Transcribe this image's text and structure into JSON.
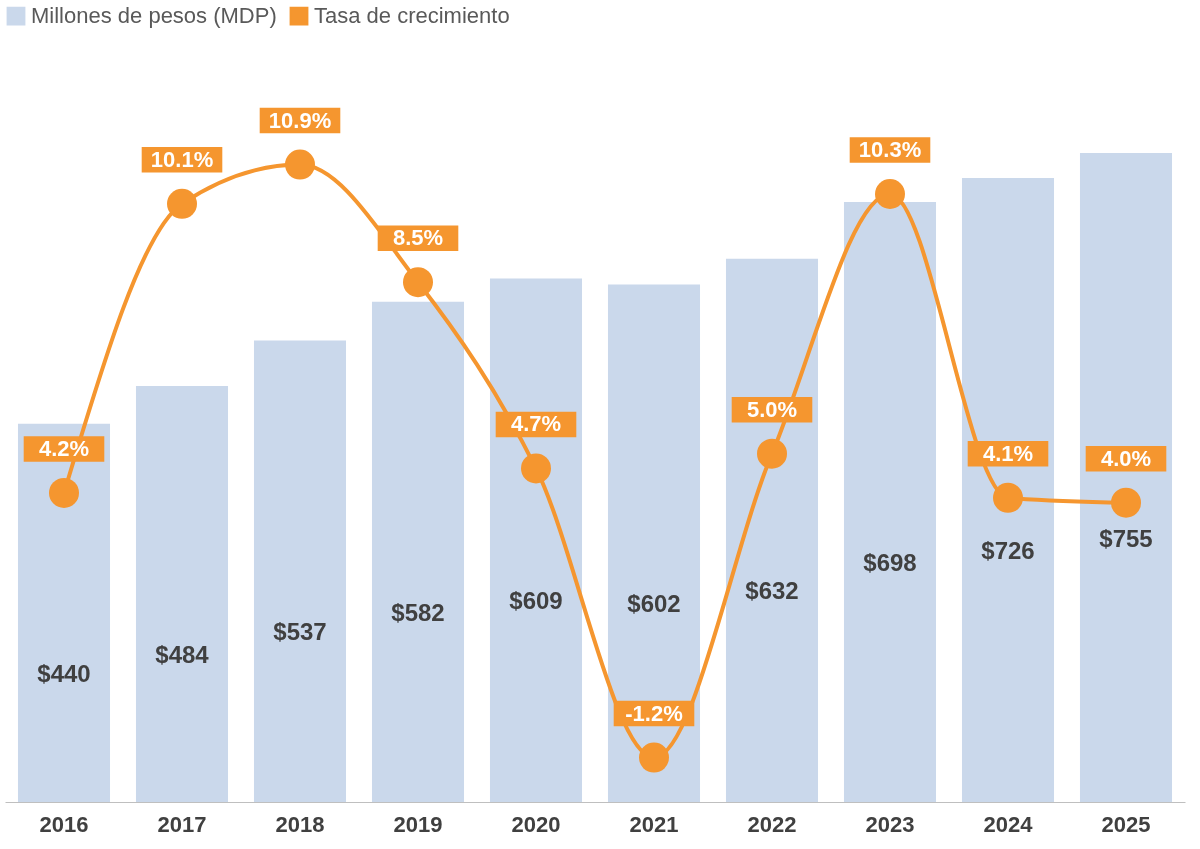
{
  "chart_data": {
    "type": "bar",
    "categories": [
      "2016",
      "2017",
      "2018",
      "2019",
      "2020",
      "2021",
      "2022",
      "2023",
      "2024",
      "2025"
    ],
    "series": [
      {
        "name": "Millones de pesos (MDP)",
        "color": "#cad8eb",
        "values": [
          440,
          484,
          537,
          582,
          609,
          602,
          632,
          698,
          726,
          755
        ],
        "value_labels": [
          "$440",
          "$484",
          "$537",
          "$582",
          "$609",
          "$602",
          "$632",
          "$698",
          "$726",
          "$755"
        ]
      },
      {
        "name": "Tasa de crecimiento",
        "type": "line",
        "axis": "y2",
        "color": "#f5962f",
        "values": [
          4.2,
          10.1,
          10.9,
          8.5,
          4.7,
          -1.2,
          5.0,
          10.3,
          4.1,
          4.0
        ],
        "value_labels": [
          "4.2%",
          "10.1%",
          "10.9%",
          "8.5%",
          "4.7%",
          "-1.2%",
          "5.0%",
          "10.3%",
          "4.1%",
          "4.0%"
        ]
      }
    ],
    "legend": "top",
    "marker": "circle",
    "tick_labels": "x",
    "grid": false
  }
}
